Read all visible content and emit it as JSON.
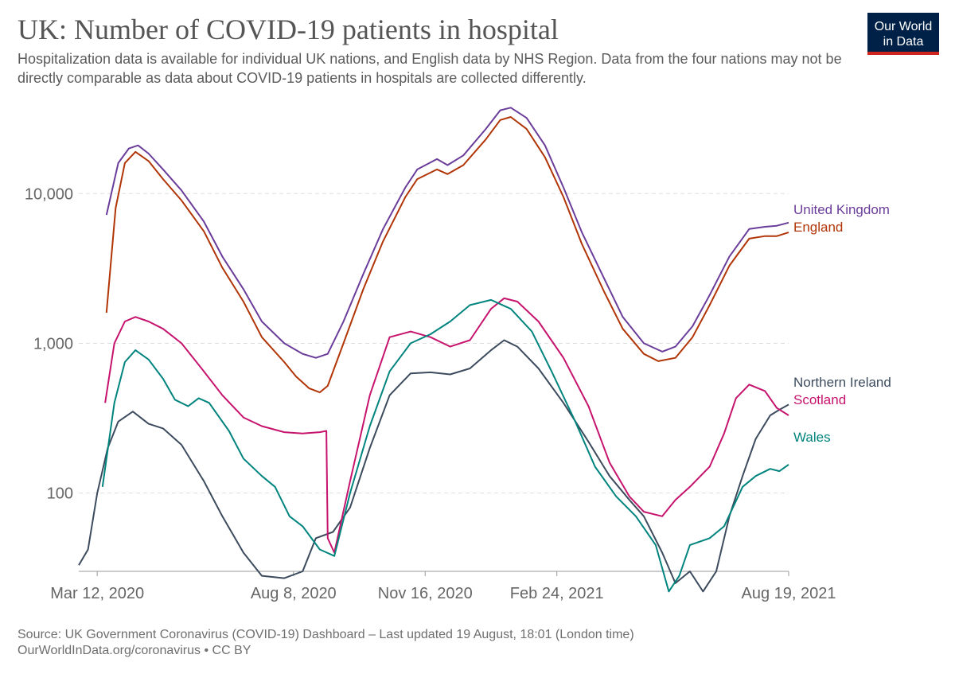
{
  "header": {
    "title": "UK: Number of COVID-19 patients in hospital",
    "subtitle": "Hospitalization data is available for individual UK nations, and English data by NHS Region. Data from the four nations may not be directly comparable as data about COVID-19 patients in hospitals are collected differently.",
    "logo_line1": "Our World",
    "logo_line2": "in Data"
  },
  "footer": {
    "source": "Source: UK Government Coronavirus (COVID-19) Dashboard – Last updated 19 August, 18:01 (London time)",
    "credit": "OurWorldInData.org/coronavirus • CC BY"
  },
  "chart_data": {
    "type": "line",
    "title": "UK: Number of COVID-19 patients in hospital",
    "y_scale": "log",
    "ylim": [
      30,
      40000
    ],
    "xlim": [
      "2020-02-27",
      "2021-08-19"
    ],
    "y_ticks": [
      {
        "value": 100,
        "label": "100"
      },
      {
        "value": 1000,
        "label": "1,000"
      },
      {
        "value": 10000,
        "label": "10,000"
      }
    ],
    "x_ticks": [
      {
        "value": "2020-03-12",
        "label": "Mar 12, 2020"
      },
      {
        "value": "2020-08-08",
        "label": "Aug 8, 2020"
      },
      {
        "value": "2020-11-16",
        "label": "Nov 16, 2020"
      },
      {
        "value": "2021-02-24",
        "label": "Feb 24, 2021"
      },
      {
        "value": "2021-08-19",
        "label": "Aug 19, 2021"
      }
    ],
    "grid": "horizontal dashed",
    "series": [
      {
        "name": "United Kingdom",
        "color": "#6b3d9a",
        "points": [
          [
            "2020-03-19",
            7200
          ],
          [
            "2020-03-28",
            16000
          ],
          [
            "2020-04-05",
            20000
          ],
          [
            "2020-04-12",
            21000
          ],
          [
            "2020-04-20",
            18500
          ],
          [
            "2020-05-01",
            14500
          ],
          [
            "2020-05-15",
            10500
          ],
          [
            "2020-06-01",
            6500
          ],
          [
            "2020-06-15",
            3800
          ],
          [
            "2020-07-01",
            2300
          ],
          [
            "2020-07-15",
            1400
          ],
          [
            "2020-08-01",
            1000
          ],
          [
            "2020-08-15",
            850
          ],
          [
            "2020-08-25",
            800
          ],
          [
            "2020-09-03",
            850
          ],
          [
            "2020-09-15",
            1400
          ],
          [
            "2020-09-30",
            2900
          ],
          [
            "2020-10-15",
            5800
          ],
          [
            "2020-11-01",
            11000
          ],
          [
            "2020-11-10",
            14500
          ],
          [
            "2020-11-25",
            17000
          ],
          [
            "2020-12-03",
            15500
          ],
          [
            "2020-12-15",
            18000
          ],
          [
            "2021-01-01",
            27000
          ],
          [
            "2021-01-12",
            36000
          ],
          [
            "2021-01-20",
            37500
          ],
          [
            "2021-02-01",
            32000
          ],
          [
            "2021-02-15",
            21000
          ],
          [
            "2021-03-01",
            11000
          ],
          [
            "2021-03-15",
            5500
          ],
          [
            "2021-04-01",
            2700
          ],
          [
            "2021-04-15",
            1500
          ],
          [
            "2021-05-01",
            1000
          ],
          [
            "2021-05-15",
            880
          ],
          [
            "2021-05-25",
            950
          ],
          [
            "2021-06-07",
            1300
          ],
          [
            "2021-06-20",
            2100
          ],
          [
            "2021-07-05",
            3800
          ],
          [
            "2021-07-20",
            5800
          ],
          [
            "2021-08-01",
            6000
          ],
          [
            "2021-08-10",
            6100
          ],
          [
            "2021-08-19",
            6400
          ]
        ]
      },
      {
        "name": "England",
        "color": "#b13507",
        "points": [
          [
            "2020-03-19",
            1600
          ],
          [
            "2020-03-26",
            8000
          ],
          [
            "2020-04-02",
            16000
          ],
          [
            "2020-04-10",
            19000
          ],
          [
            "2020-04-20",
            16500
          ],
          [
            "2020-05-01",
            12500
          ],
          [
            "2020-05-15",
            9000
          ],
          [
            "2020-06-01",
            5600
          ],
          [
            "2020-06-15",
            3200
          ],
          [
            "2020-07-01",
            1900
          ],
          [
            "2020-07-15",
            1100
          ],
          [
            "2020-08-01",
            750
          ],
          [
            "2020-08-10",
            600
          ],
          [
            "2020-08-20",
            500
          ],
          [
            "2020-08-28",
            470
          ],
          [
            "2020-09-03",
            520
          ],
          [
            "2020-09-15",
            1000
          ],
          [
            "2020-09-30",
            2300
          ],
          [
            "2020-10-15",
            4800
          ],
          [
            "2020-11-01",
            9500
          ],
          [
            "2020-11-10",
            12500
          ],
          [
            "2020-11-25",
            14500
          ],
          [
            "2020-12-03",
            13500
          ],
          [
            "2020-12-15",
            15500
          ],
          [
            "2021-01-01",
            23000
          ],
          [
            "2021-01-12",
            31000
          ],
          [
            "2021-01-20",
            32500
          ],
          [
            "2021-02-01",
            27000
          ],
          [
            "2021-02-15",
            17500
          ],
          [
            "2021-03-01",
            9500
          ],
          [
            "2021-03-15",
            4600
          ],
          [
            "2021-04-01",
            2200
          ],
          [
            "2021-04-15",
            1250
          ],
          [
            "2021-05-01",
            850
          ],
          [
            "2021-05-12",
            760
          ],
          [
            "2021-05-25",
            800
          ],
          [
            "2021-06-07",
            1100
          ],
          [
            "2021-06-20",
            1800
          ],
          [
            "2021-07-05",
            3300
          ],
          [
            "2021-07-20",
            5000
          ],
          [
            "2021-08-01",
            5200
          ],
          [
            "2021-08-10",
            5200
          ],
          [
            "2021-08-19",
            5500
          ]
        ]
      },
      {
        "name": "Northern Ireland",
        "color": "#3c4b5d",
        "points": [
          [
            "2020-02-27",
            33
          ],
          [
            "2020-03-05",
            42
          ],
          [
            "2020-03-12",
            100
          ],
          [
            "2020-03-20",
            200
          ],
          [
            "2020-03-28",
            300
          ],
          [
            "2020-04-08",
            350
          ],
          [
            "2020-04-20",
            290
          ],
          [
            "2020-05-01",
            270
          ],
          [
            "2020-05-15",
            210
          ],
          [
            "2020-06-01",
            120
          ],
          [
            "2020-06-15",
            70
          ],
          [
            "2020-07-01",
            40
          ],
          [
            "2020-07-15",
            28
          ],
          [
            "2020-08-01",
            27
          ],
          [
            "2020-08-15",
            30
          ],
          [
            "2020-08-25",
            50
          ],
          [
            "2020-09-07",
            55
          ],
          [
            "2020-09-20",
            80
          ],
          [
            "2020-10-05",
            200
          ],
          [
            "2020-10-20",
            450
          ],
          [
            "2020-11-05",
            630
          ],
          [
            "2020-11-20",
            640
          ],
          [
            "2020-12-05",
            620
          ],
          [
            "2020-12-20",
            680
          ],
          [
            "2021-01-05",
            900
          ],
          [
            "2021-01-15",
            1050
          ],
          [
            "2021-01-25",
            950
          ],
          [
            "2021-02-10",
            680
          ],
          [
            "2021-03-01",
            400
          ],
          [
            "2021-03-20",
            220
          ],
          [
            "2021-04-05",
            130
          ],
          [
            "2021-04-20",
            90
          ],
          [
            "2021-05-01",
            70
          ],
          [
            "2021-05-15",
            40
          ],
          [
            "2021-05-25",
            25
          ],
          [
            "2021-06-05",
            30
          ],
          [
            "2021-06-15",
            22
          ],
          [
            "2021-06-25",
            30
          ],
          [
            "2021-07-05",
            70
          ],
          [
            "2021-07-15",
            130
          ],
          [
            "2021-07-25",
            230
          ],
          [
            "2021-08-05",
            330
          ],
          [
            "2021-08-12",
            360
          ],
          [
            "2021-08-19",
            390
          ]
        ]
      },
      {
        "name": "Scotland",
        "color": "#c6136d",
        "points": [
          [
            "2020-03-18",
            400
          ],
          [
            "2020-03-25",
            1000
          ],
          [
            "2020-04-02",
            1400
          ],
          [
            "2020-04-10",
            1500
          ],
          [
            "2020-04-20",
            1400
          ],
          [
            "2020-05-01",
            1250
          ],
          [
            "2020-05-15",
            1000
          ],
          [
            "2020-06-01",
            650
          ],
          [
            "2020-06-15",
            450
          ],
          [
            "2020-07-01",
            320
          ],
          [
            "2020-07-15",
            280
          ],
          [
            "2020-08-01",
            255
          ],
          [
            "2020-08-15",
            250
          ],
          [
            "2020-08-28",
            255
          ],
          [
            "2020-09-02",
            260
          ],
          [
            "2020-09-03",
            50
          ],
          [
            "2020-09-08",
            40
          ],
          [
            "2020-09-20",
            120
          ],
          [
            "2020-10-05",
            450
          ],
          [
            "2020-10-20",
            1100
          ],
          [
            "2020-11-05",
            1200
          ],
          [
            "2020-11-20",
            1100
          ],
          [
            "2020-12-05",
            950
          ],
          [
            "2020-12-20",
            1050
          ],
          [
            "2021-01-05",
            1700
          ],
          [
            "2021-01-15",
            2000
          ],
          [
            "2021-01-25",
            1900
          ],
          [
            "2021-02-10",
            1400
          ],
          [
            "2021-03-01",
            800
          ],
          [
            "2021-03-20",
            380
          ],
          [
            "2021-04-05",
            160
          ],
          [
            "2021-04-20",
            95
          ],
          [
            "2021-05-01",
            75
          ],
          [
            "2021-05-15",
            70
          ],
          [
            "2021-05-25",
            90
          ],
          [
            "2021-06-05",
            110
          ],
          [
            "2021-06-20",
            150
          ],
          [
            "2021-07-01",
            250
          ],
          [
            "2021-07-10",
            430
          ],
          [
            "2021-07-20",
            530
          ],
          [
            "2021-08-01",
            480
          ],
          [
            "2021-08-10",
            370
          ],
          [
            "2021-08-19",
            330
          ]
        ]
      },
      {
        "name": "Wales",
        "color": "#00847e",
        "points": [
          [
            "2020-03-16",
            110
          ],
          [
            "2020-03-25",
            400
          ],
          [
            "2020-04-02",
            750
          ],
          [
            "2020-04-10",
            900
          ],
          [
            "2020-04-20",
            780
          ],
          [
            "2020-05-01",
            580
          ],
          [
            "2020-05-10",
            420
          ],
          [
            "2020-05-20",
            380
          ],
          [
            "2020-05-28",
            430
          ],
          [
            "2020-06-05",
            400
          ],
          [
            "2020-06-20",
            260
          ],
          [
            "2020-07-01",
            170
          ],
          [
            "2020-07-15",
            130
          ],
          [
            "2020-07-25",
            110
          ],
          [
            "2020-08-05",
            70
          ],
          [
            "2020-08-15",
            60
          ],
          [
            "2020-08-28",
            42
          ],
          [
            "2020-09-08",
            38
          ],
          [
            "2020-09-20",
            100
          ],
          [
            "2020-10-05",
            280
          ],
          [
            "2020-10-20",
            650
          ],
          [
            "2020-11-05",
            1000
          ],
          [
            "2020-11-20",
            1150
          ],
          [
            "2020-12-05",
            1400
          ],
          [
            "2020-12-20",
            1800
          ],
          [
            "2021-01-05",
            1950
          ],
          [
            "2021-01-20",
            1700
          ],
          [
            "2021-02-05",
            1200
          ],
          [
            "2021-02-20",
            650
          ],
          [
            "2021-03-10",
            300
          ],
          [
            "2021-03-25",
            150
          ],
          [
            "2021-04-10",
            95
          ],
          [
            "2021-04-25",
            70
          ],
          [
            "2021-05-10",
            45
          ],
          [
            "2021-05-20",
            22
          ],
          [
            "2021-05-28",
            28
          ],
          [
            "2021-06-05",
            45
          ],
          [
            "2021-06-20",
            50
          ],
          [
            "2021-07-01",
            60
          ],
          [
            "2021-07-15",
            110
          ],
          [
            "2021-07-25",
            130
          ],
          [
            "2021-08-05",
            145
          ],
          [
            "2021-08-12",
            140
          ],
          [
            "2021-08-19",
            155
          ]
        ]
      }
    ]
  }
}
